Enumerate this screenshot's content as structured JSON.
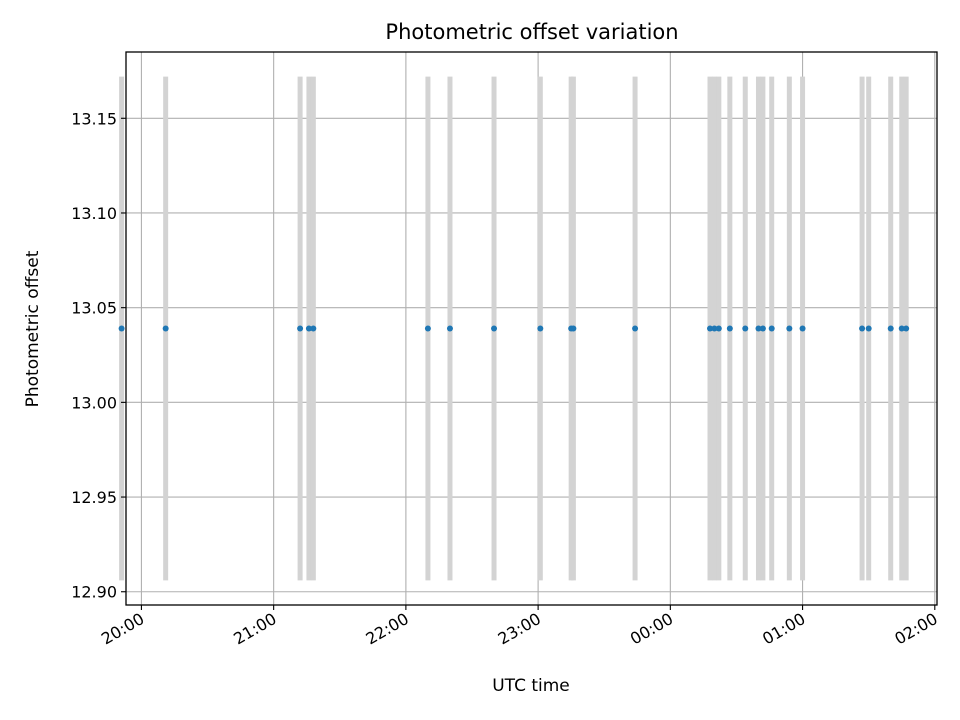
{
  "chart_data": {
    "type": "scatter",
    "title": "Photometric offset variation",
    "xlabel": "UTC time",
    "ylabel": "Photometric offset",
    "xlim": [
      "19:53",
      "02:01"
    ],
    "ylim": [
      12.893,
      13.185
    ],
    "x_ticks": [
      "20:00",
      "21:00",
      "22:00",
      "23:00",
      "00:00",
      "01:00",
      "02:00"
    ],
    "y_ticks": [
      "12.90",
      "12.95",
      "13.00",
      "13.05",
      "13.10",
      "13.15"
    ],
    "grid": true,
    "error_bar_color": "#d3d3d3",
    "point_color": "#1f77b4",
    "series": [
      {
        "x": [
          "19:51",
          "20:11",
          "21:12",
          "21:16",
          "21:18",
          "22:10",
          "22:20",
          "22:40",
          "23:01",
          "23:15",
          "23:16",
          "23:44",
          "00:18",
          "00:20",
          "00:22",
          "00:27",
          "00:34",
          "00:40",
          "00:42",
          "00:46",
          "00:54",
          "01:00",
          "01:27",
          "01:30",
          "01:40",
          "01:45",
          "01:47"
        ],
        "y": [
          13.039,
          13.039,
          13.039,
          13.039,
          13.039,
          13.039,
          13.039,
          13.039,
          13.039,
          13.039,
          13.039,
          13.039,
          13.039,
          13.039,
          13.039,
          13.039,
          13.039,
          13.039,
          13.039,
          13.039,
          13.039,
          13.039,
          13.039,
          13.039,
          13.039,
          13.039,
          13.039
        ],
        "y_low": [
          12.906,
          12.906,
          12.906,
          12.906,
          12.906,
          12.906,
          12.906,
          12.906,
          12.906,
          12.906,
          12.906,
          12.906,
          12.906,
          12.906,
          12.906,
          12.906,
          12.906,
          12.906,
          12.906,
          12.906,
          12.906,
          12.906,
          12.906,
          12.906,
          12.906,
          12.906,
          12.906
        ],
        "y_high": [
          13.172,
          13.172,
          13.172,
          13.172,
          13.172,
          13.172,
          13.172,
          13.172,
          13.172,
          13.172,
          13.172,
          13.172,
          13.172,
          13.172,
          13.172,
          13.172,
          13.172,
          13.172,
          13.172,
          13.172,
          13.172,
          13.172,
          13.172,
          13.172,
          13.172,
          13.172,
          13.172
        ]
      }
    ]
  }
}
